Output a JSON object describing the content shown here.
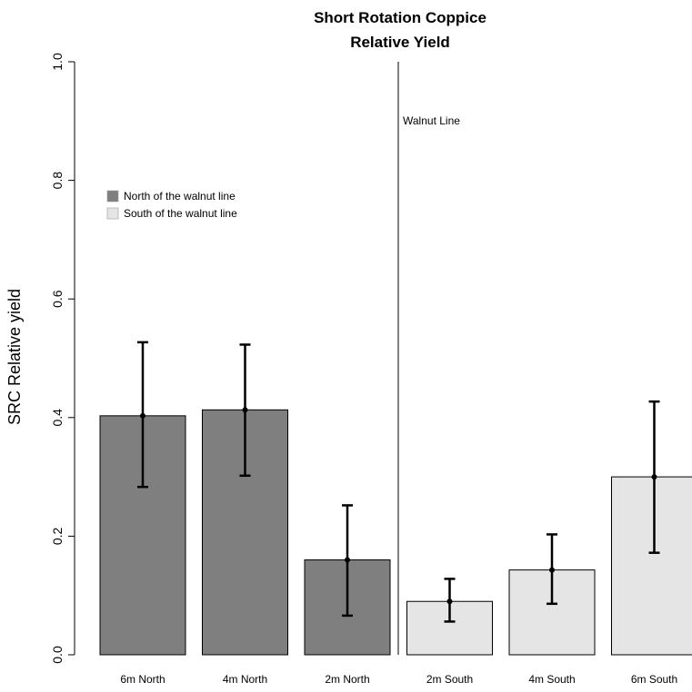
{
  "chart_data": {
    "type": "bar",
    "title": [
      "Short Rotation Coppice",
      "Relative Yield"
    ],
    "ylabel": "SRC Relative yield",
    "xlabel": "",
    "ylim": [
      0,
      1
    ],
    "yticks": [
      "0.0",
      "0.2",
      "0.4",
      "0.6",
      "0.8",
      "1.0"
    ],
    "categories": [
      "6m North",
      "4m North",
      "2m North",
      "2m South",
      "4m South",
      "6m South"
    ],
    "values": [
      0.403,
      0.413,
      0.16,
      0.09,
      0.143,
      0.3
    ],
    "error_low": [
      0.283,
      0.302,
      0.066,
      0.056,
      0.086,
      0.172
    ],
    "error_high": [
      0.527,
      0.523,
      0.252,
      0.128,
      0.203,
      0.427
    ],
    "groups": [
      "north",
      "north",
      "north",
      "south",
      "south",
      "south"
    ],
    "colors": {
      "north": "#7f7f7f",
      "south": "#e5e5e5",
      "edge": "#000000"
    },
    "legend": {
      "position": "upper-left",
      "entries": [
        {
          "label": "North of the walnut line",
          "group": "north"
        },
        {
          "label": "South of the walnut line",
          "group": "south"
        }
      ]
    },
    "annotations": [
      {
        "text": "Walnut Line",
        "type": "vertical-line"
      }
    ],
    "grid": false
  }
}
